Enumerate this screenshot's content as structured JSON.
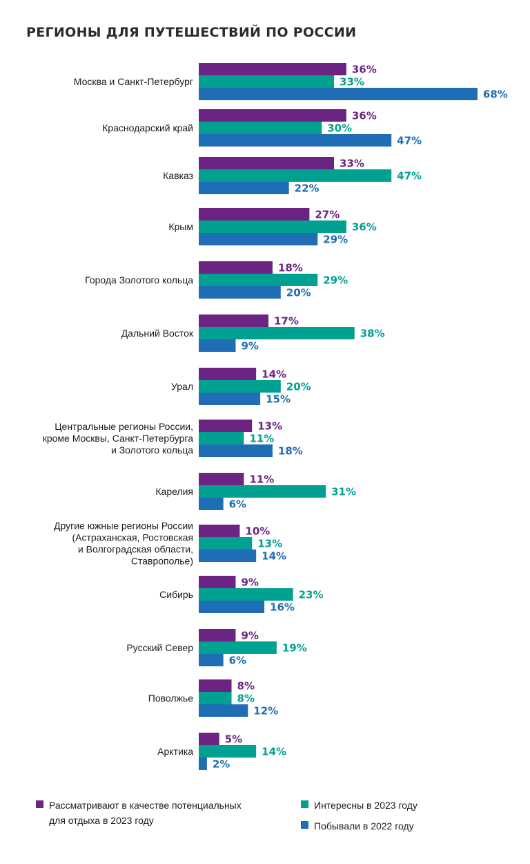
{
  "title": "РЕГИОНЫ ДЛЯ ПУТЕШЕСТВИЙ ПО РОССИИ",
  "colors": {
    "consider": "#6b2482",
    "interest": "#00a191",
    "visited": "#1f6db5"
  },
  "legend": {
    "consider": "Рассматривают в качестве потенциальных для отдыха в 2023 году",
    "consider_line1": "Рассматривают в качестве потенциальных",
    "consider_line2": "для отдыха в 2023 году",
    "interest": "Интересны в 2023 году",
    "visited": "Побывали в 2022 году"
  },
  "chart_data": {
    "type": "bar",
    "orientation": "horizontal",
    "title": "РЕГИОНЫ ДЛЯ ПУТЕШЕСТВИЙ ПО РОССИИ",
    "unit": "%",
    "categories": [
      "Москва и Санкт-Петербург",
      "Краснодарский край",
      "Кавказ",
      "Крым",
      "Города Золотого кольца",
      "Дальний Восток",
      "Урал",
      "Центральные регионы России, кроме Москвы, Санкт-Петербурга и Золотого кольца",
      "Карелия",
      "Другие южные регионы России (Астраханская, Ростовская и Волгоградская области, Ставрополье)",
      "Сибирь",
      "Русский Север",
      "Поволжье",
      "Арктика"
    ],
    "category_lines": [
      [
        "Москва и Санкт-Петербург"
      ],
      [
        "Краснодарский край"
      ],
      [
        "Кавказ"
      ],
      [
        "Крым"
      ],
      [
        "Города Золотого кольца"
      ],
      [
        "Дальний Восток"
      ],
      [
        "Урал"
      ],
      [
        "Центральные регионы России,",
        "кроме Москвы, Санкт-Петербурга",
        "и Золотого кольца"
      ],
      [
        "Карелия"
      ],
      [
        "Другие южные регионы России",
        "(Астраханская, Ростовская",
        "и Волгоградская области,",
        "Ставрополье)"
      ],
      [
        "Сибирь"
      ],
      [
        "Русский Север"
      ],
      [
        "Поволжье"
      ],
      [
        "Арктика"
      ]
    ],
    "series": [
      {
        "name": "Рассматривают в качестве потенциальных для отдыха в 2023 году",
        "key": "consider",
        "values": [
          36,
          36,
          33,
          27,
          18,
          17,
          14,
          13,
          11,
          10,
          9,
          9,
          8,
          5
        ]
      },
      {
        "name": "Интересны в 2023 году",
        "key": "interest",
        "values": [
          33,
          30,
          47,
          36,
          29,
          38,
          20,
          11,
          31,
          13,
          23,
          19,
          8,
          14
        ]
      },
      {
        "name": "Побывали в 2022 году",
        "key": "visited",
        "values": [
          68,
          47,
          22,
          29,
          20,
          9,
          15,
          18,
          6,
          14,
          16,
          6,
          12,
          2
        ]
      }
    ],
    "xlim": [
      0,
      68
    ],
    "grid": false,
    "legend_position": "bottom"
  }
}
